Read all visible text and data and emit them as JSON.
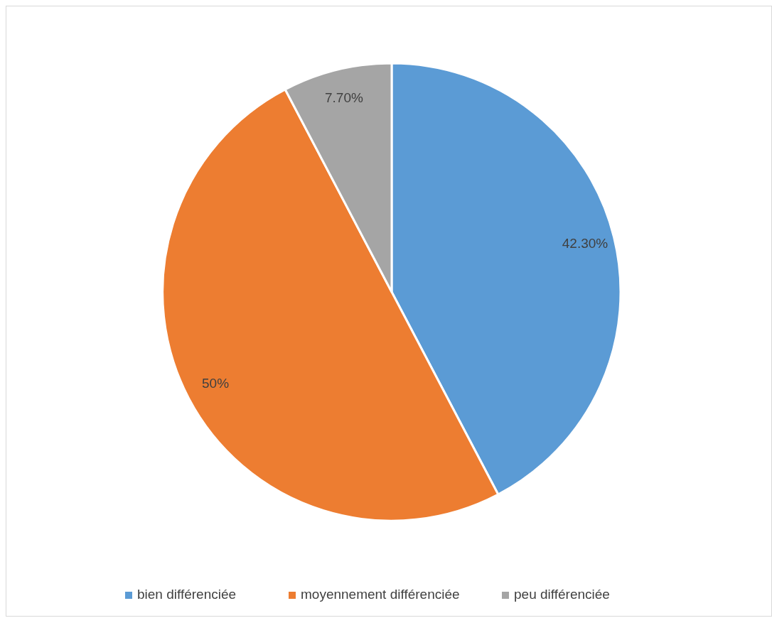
{
  "chart_data": {
    "type": "pie",
    "categories": [
      "bien différenciée",
      "moyennement différenciée",
      "peu différenciée"
    ],
    "values": [
      42.3,
      50,
      7.7
    ],
    "value_labels": [
      "42.30%",
      "50%",
      "7.70%"
    ],
    "colors": [
      "#5b9bd5",
      "#ed7d31",
      "#a5a5a5"
    ],
    "legend": "bottom"
  }
}
